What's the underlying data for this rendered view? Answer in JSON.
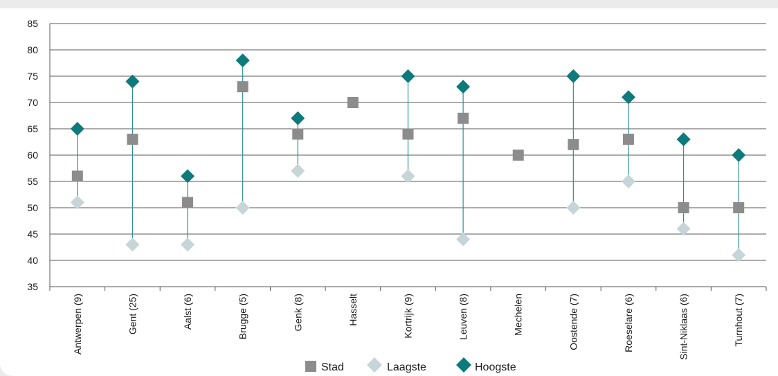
{
  "chart_data": {
    "type": "scatter",
    "title": "",
    "xlabel": "",
    "ylabel": "",
    "ylim": [
      35,
      85
    ],
    "yticks": [
      35,
      40,
      45,
      50,
      55,
      60,
      65,
      70,
      75,
      80,
      85
    ],
    "grid": "horizontal",
    "legend_position": "bottom",
    "categories": [
      "Antwerpen (9)",
      "Gent (25)",
      "Aalst (6)",
      "Brugge (5)",
      "Genk (8)",
      "Hasselt",
      "Kortrijk (9)",
      "Leuven (8)",
      "Mechelen",
      "Oostende (7)",
      "Roeselare (6)",
      "Sint-Niklaas (6)",
      "Turnhout (7)"
    ],
    "series": [
      {
        "name": "Stad",
        "marker": "square",
        "color": "#8c8c8c",
        "values": [
          56,
          63,
          51,
          73,
          64,
          70,
          64,
          67,
          60,
          62,
          63,
          50,
          50
        ]
      },
      {
        "name": "Laagste",
        "marker": "diamond",
        "color": "#c5d5d8",
        "values": [
          51,
          43,
          43,
          50,
          57,
          null,
          56,
          44,
          null,
          50,
          55,
          46,
          41
        ]
      },
      {
        "name": "Hoogste",
        "marker": "diamond",
        "color": "#0e7a7c",
        "values": [
          65,
          74,
          56,
          78,
          67,
          null,
          75,
          73,
          null,
          75,
          71,
          63,
          60
        ]
      }
    ],
    "range_line_color": "#2f8f93"
  }
}
